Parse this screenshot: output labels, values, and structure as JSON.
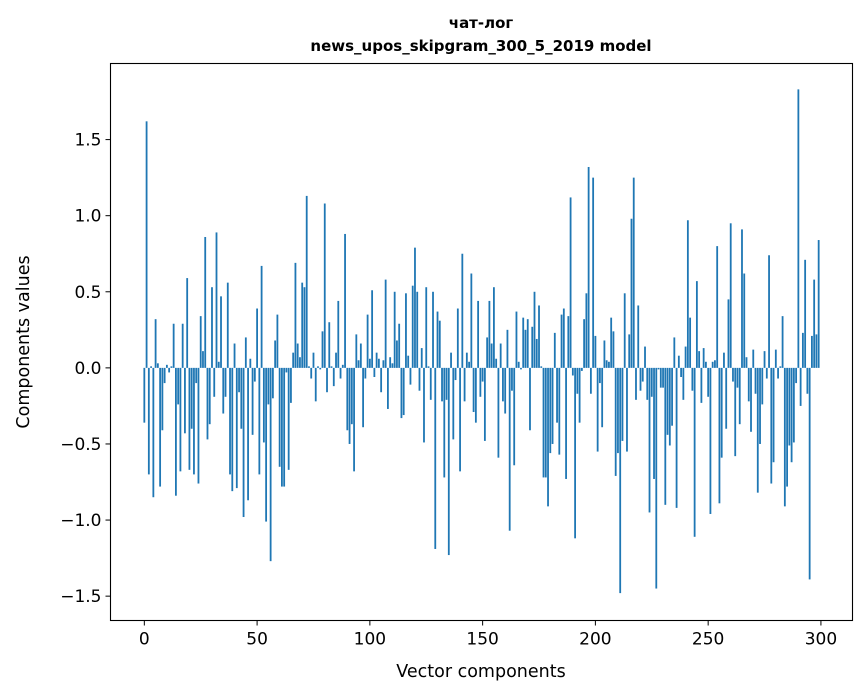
{
  "chart_data": {
    "type": "bar",
    "title": [
      "чат-лог",
      "news_upos_skipgram_300_5_2019 model"
    ],
    "xlabel": "Vector components",
    "ylabel": "Components values",
    "xlim": [
      -15,
      314
    ],
    "ylim": [
      -1.66,
      2.0
    ],
    "xticks": [
      0,
      50,
      100,
      150,
      200,
      250,
      300
    ],
    "yticks": [
      -1.5,
      -1.0,
      -0.5,
      0.0,
      0.5,
      1.0,
      1.5
    ],
    "xtick_labels": [
      "0",
      "50",
      "100",
      "150",
      "200",
      "250",
      "300"
    ],
    "ytick_labels": [
      "−1.5",
      "−1.0",
      "−0.5",
      "0.0",
      "0.5",
      "1.0",
      "1.5"
    ],
    "grid": false,
    "color": "#1f77b4",
    "values": [
      -0.36,
      1.62,
      -0.7,
      0.01,
      -0.85,
      0.32,
      0.03,
      -0.78,
      -0.41,
      -0.1,
      0.02,
      -0.03,
      0.01,
      0.29,
      -0.84,
      -0.24,
      -0.68,
      0.29,
      -0.43,
      0.59,
      -0.67,
      -0.4,
      -0.7,
      -0.1,
      -0.76,
      0.34,
      0.11,
      0.86,
      -0.47,
      -0.37,
      0.53,
      -0.19,
      0.89,
      0.04,
      0.47,
      -0.3,
      -0.19,
      0.56,
      -0.7,
      -0.81,
      0.16,
      -0.79,
      -0.16,
      -0.4,
      -0.98,
      0.2,
      -0.87,
      0.06,
      -0.44,
      -0.09,
      0.39,
      -0.7,
      0.67,
      -0.49,
      -1.01,
      -0.24,
      -1.27,
      -0.2,
      0.18,
      0.35,
      -0.65,
      -0.78,
      -0.78,
      -0.03,
      -0.67,
      -0.23,
      0.1,
      0.69,
      0.16,
      0.07,
      0.56,
      0.53,
      1.13,
      0.01,
      -0.07,
      0.1,
      -0.22,
      0.01,
      -0.01,
      0.24,
      1.08,
      -0.16,
      0.3,
      0.01,
      -0.12,
      0.1,
      0.44,
      -0.07,
      0.02,
      0.88,
      -0.41,
      -0.5,
      -0.37,
      -0.68,
      0.22,
      0.05,
      0.16,
      -0.39,
      -0.07,
      0.35,
      0.06,
      0.51,
      -0.06,
      0.1,
      0.06,
      -0.16,
      0.05,
      0.58,
      -0.27,
      0.07,
      0.03,
      0.5,
      0.18,
      0.29,
      -0.33,
      -0.31,
      0.49,
      0.08,
      -0.11,
      0.54,
      0.79,
      0.5,
      -0.15,
      0.13,
      -0.49,
      0.53,
      0.01,
      -0.21,
      0.5,
      -1.19,
      0.37,
      0.31,
      -0.22,
      -0.72,
      -0.21,
      -1.23,
      0.1,
      -0.47,
      -0.08,
      0.39,
      -0.68,
      0.75,
      -0.22,
      0.1,
      0.04,
      0.62,
      -0.29,
      -0.36,
      0.44,
      -0.19,
      -0.09,
      -0.48,
      0.2,
      0.44,
      0.16,
      0.53,
      0.06,
      -0.59,
      0.16,
      -0.22,
      -0.3,
      0.25,
      -1.07,
      -0.15,
      -0.64,
      0.37,
      0.04,
      -0.01,
      0.33,
      0.25,
      0.32,
      -0.41,
      0.27,
      0.5,
      0.19,
      0.41,
      0.01,
      -0.72,
      -0.72,
      -0.91,
      -0.56,
      -0.5,
      0.23,
      -0.36,
      -0.57,
      0.35,
      0.39,
      -0.73,
      0.34,
      1.12,
      -0.05,
      -1.12,
      -0.17,
      -0.36,
      -0.02,
      0.32,
      0.49,
      1.32,
      -0.17,
      1.25,
      0.21,
      -0.55,
      -0.1,
      -0.39,
      0.18,
      0.05,
      0.04,
      0.33,
      0.24,
      -0.71,
      -0.56,
      -1.48,
      -0.48,
      0.49,
      -0.55,
      0.22,
      0.98,
      1.25,
      -0.21,
      0.41,
      -0.15,
      -0.09,
      0.14,
      -0.21,
      -0.95,
      -0.19,
      -0.73,
      -1.45,
      -0.01,
      -0.13,
      -0.13,
      -0.9,
      -0.44,
      -0.51,
      -0.38,
      0.2,
      -0.92,
      0.08,
      -0.06,
      -0.21,
      0.14,
      0.97,
      0.33,
      -0.15,
      -1.11,
      0.57,
      0.11,
      -0.23,
      0.13,
      0.04,
      -0.19,
      -0.96,
      0.04,
      0.05,
      0.8,
      -0.89,
      -0.59,
      0.1,
      -0.4,
      0.45,
      0.95,
      -0.09,
      -0.58,
      -0.13,
      -0.37,
      0.91,
      0.62,
      0.07,
      -0.22,
      -0.42,
      0.12,
      -0.17,
      -0.82,
      -0.5,
      -0.24,
      0.11,
      -0.07,
      0.74,
      -0.76,
      -0.62,
      0.12,
      -0.07,
      0.01,
      0.34,
      -0.91,
      -0.78,
      -0.51,
      -0.62,
      -0.49,
      -0.1,
      1.83,
      -0.25,
      0.23,
      0.71,
      -0.17,
      -1.39,
      0.21,
      0.58,
      0.22,
      0.84
    ]
  }
}
